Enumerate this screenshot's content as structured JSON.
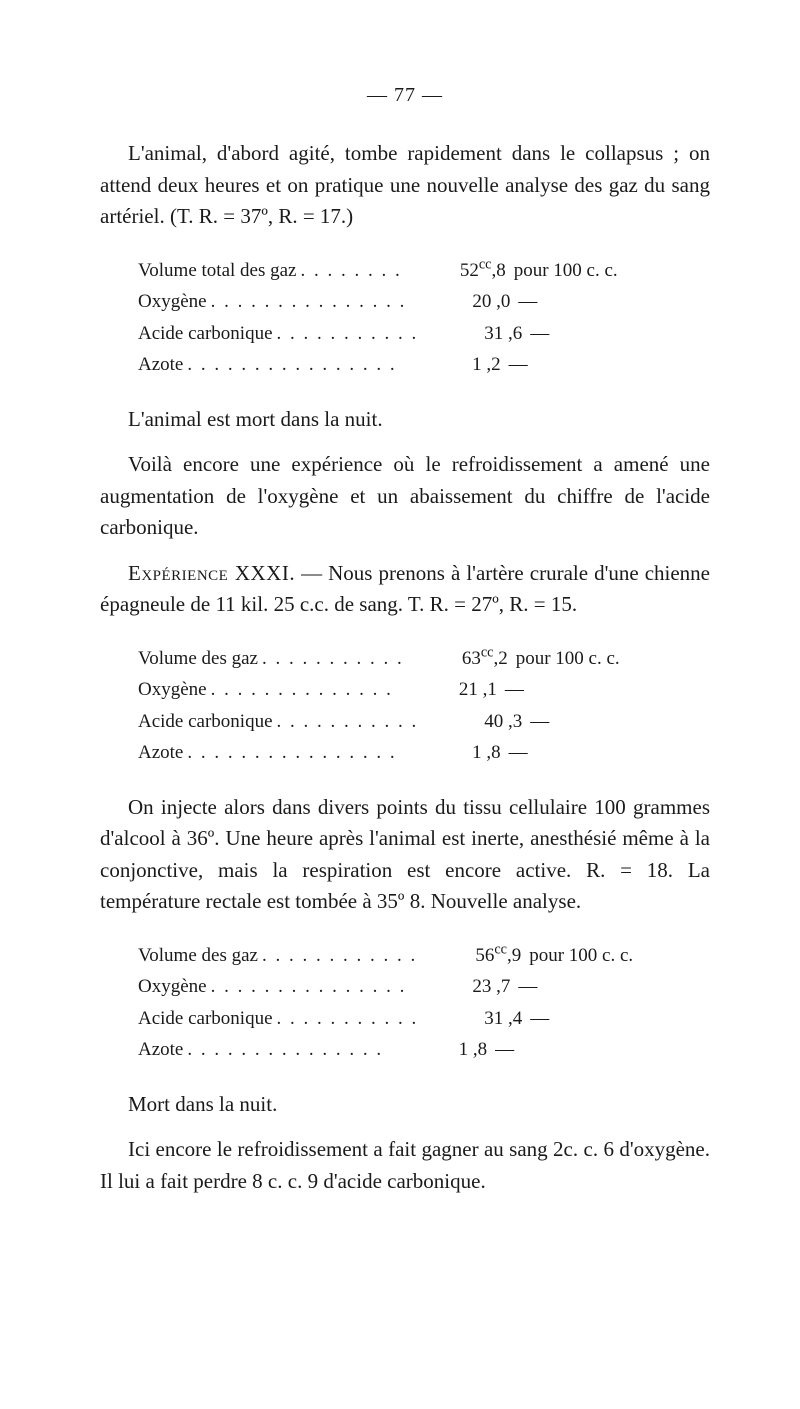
{
  "page_number": "— 77 —",
  "para1": "L'animal, d'abord agité, tombe rapidement dans le collapsus ; on attend deux heures et on pratique une nouvelle analyse des gaz du sang artériel. (T. R. = 37º, R. = 17.)",
  "table1": {
    "rows": [
      {
        "label": "Volume total des gaz",
        "dots": ". . . . . . . .",
        "val_pre": "52",
        "sup": "cc",
        "val_post": ",8",
        "unit": "pour 100 c. c."
      },
      {
        "label": "Oxygène",
        "dots": ". . . . . . . . . . . . . . .",
        "val_pre": "20 ,0",
        "sup": "",
        "val_post": "",
        "unit": "—"
      },
      {
        "label": "Acide carbonique",
        "dots": ". . . . . . . . . . .",
        "val_pre": "31 ,6",
        "sup": "",
        "val_post": "",
        "unit": "—"
      },
      {
        "label": "Azote",
        "dots": ". . . . . . . . . . . . . . . .",
        "val_pre": "1 ,2",
        "sup": "",
        "val_post": "",
        "unit": "—"
      }
    ]
  },
  "para2": "L'animal est mort dans la nuit.",
  "para3": "Voilà encore une expérience où le refroidissement a amené une augmentation de l'oxygène et un abaissement du chiffre de l'acide carbonique.",
  "exp_label": "Expérience XXXI.",
  "para4": " — Nous prenons à l'artère crurale d'une chienne épagneule de 11 kil. 25 c.c. de sang. T. R. = 27º, R. = 15.",
  "table2": {
    "rows": [
      {
        "label": "Volume des gaz",
        "dots": ". . .  . . . . . . . .",
        "val_pre": "63",
        "sup": "cc",
        "val_post": ",2",
        "unit": "pour 100 c. c."
      },
      {
        "label": "Oxygène",
        "dots": ". . . .  . . . . . . . . . .",
        "val_pre": "21 ,1",
        "sup": "",
        "val_post": "",
        "unit": "—"
      },
      {
        "label": "Acide carbonique",
        "dots": ". . . . . . . . . . .",
        "val_pre": "40 ,3",
        "sup": "",
        "val_post": "",
        "unit": "—"
      },
      {
        "label": "Azote",
        "dots": ". . . . . . . . . . . . . . . .",
        "val_pre": "1 ,8",
        "sup": "",
        "val_post": "",
        "unit": "—"
      }
    ]
  },
  "para5": "On injecte alors dans divers points du tissu cellulaire 100 grammes d'alcool à 36º. Une heure après l'animal est inerte, anesthésié même à la conjonctive, mais la respiration est encore active. R. = 18. La température rectale est tombée à 35º 8. Nouvelle analyse.",
  "table3": {
    "rows": [
      {
        "label": "Volume des gaz",
        "dots": ". . . . . . . . . . . .",
        "val_pre": "56",
        "sup": "cc",
        "val_post": ",9",
        "unit": "pour 100 c. c."
      },
      {
        "label": "Oxygène",
        "dots": ". . . . . . . . . . . . . . .",
        "val_pre": "23 ,7",
        "sup": "",
        "val_post": "",
        "unit": "—"
      },
      {
        "label": "Acide carbonique",
        "dots": ". . . . . . . . . . .",
        "val_pre": "31 ,4",
        "sup": "",
        "val_post": "",
        "unit": "—"
      },
      {
        "label": "Azote",
        "dots": ". . . . . . . . .  . . . . . .",
        "val_pre": "1 ,8",
        "sup": "",
        "val_post": "",
        "unit": "—"
      }
    ]
  },
  "para6": "Mort dans la nuit.",
  "para7": "Ici encore le refroidissement a fait gagner au sang 2c. c. 6 d'oxygène. Il lui a fait perdre 8 c. c. 9 d'acide carbonique."
}
